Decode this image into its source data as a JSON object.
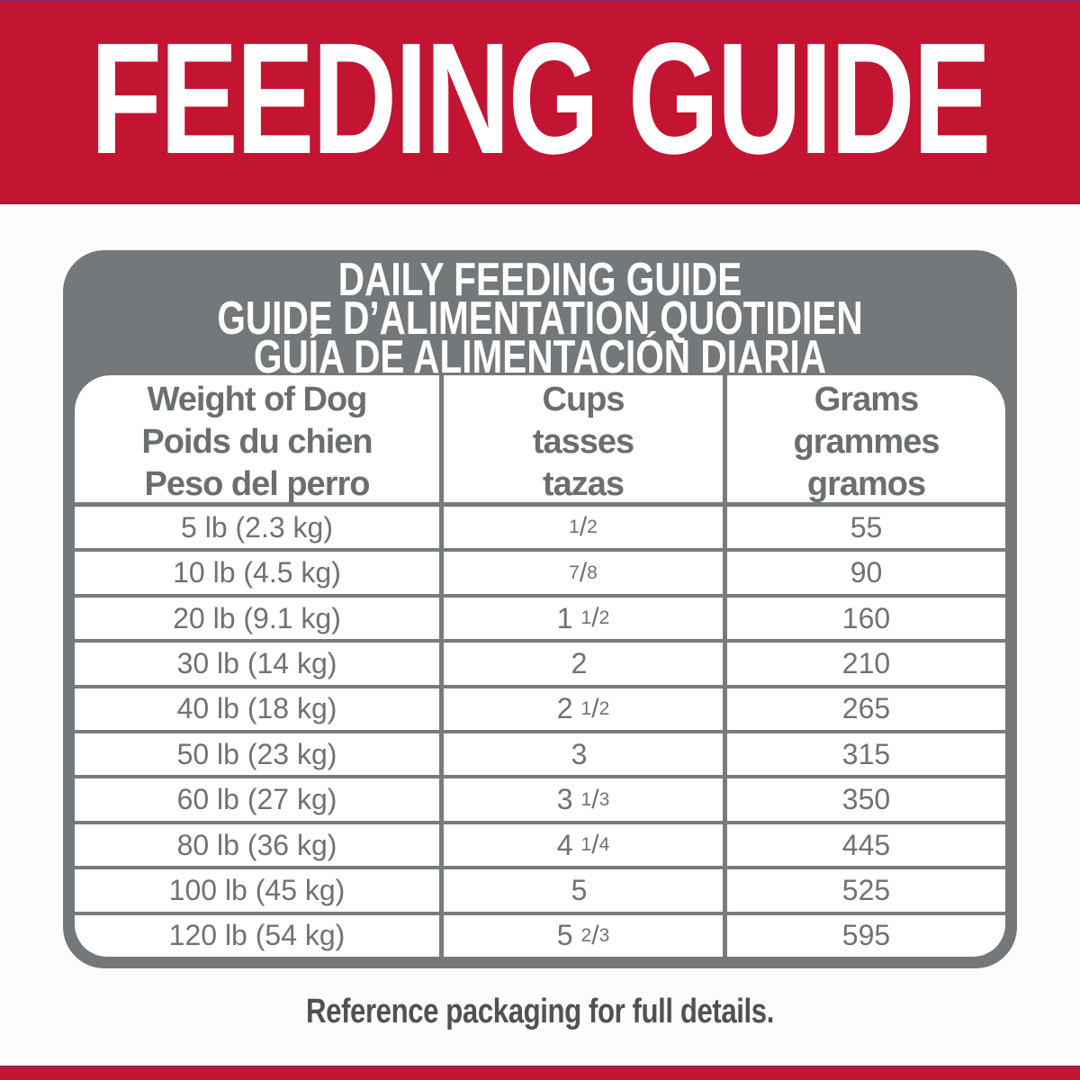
{
  "banner": {
    "title": "FEEDING GUIDE"
  },
  "card": {
    "title_lines": [
      "DAILY FEEDING GUIDE",
      "GUIDE D’ALIMENTATION QUOTIDIEN",
      "GUÍA DE ALIMENTACIÓN DIARIA"
    ],
    "columns": [
      {
        "lines": [
          "Weight of Dog",
          "Poids du chien",
          "Peso del perro"
        ]
      },
      {
        "lines": [
          "Cups",
          "tasses",
          "tazas"
        ]
      },
      {
        "lines": [
          "Grams",
          "grammes",
          "gramos"
        ]
      }
    ],
    "rows": [
      {
        "weight": "5 lb (2.3 kg)",
        "cups": {
          "whole": "",
          "num": "1",
          "slash": "/",
          "den": "2"
        },
        "grams": "55"
      },
      {
        "weight": "10 lb (4.5 kg)",
        "cups": {
          "whole": "",
          "num": "7",
          "slash": "/",
          "den": "8"
        },
        "grams": "90"
      },
      {
        "weight": "20 lb (9.1 kg)",
        "cups": {
          "whole": "1",
          "num": "1",
          "slash": "/",
          "den": "2"
        },
        "grams": "160"
      },
      {
        "weight": "30 lb (14 kg)",
        "cups": {
          "whole": "2",
          "num": "",
          "slash": "",
          "den": ""
        },
        "grams": "210"
      },
      {
        "weight": "40 lb (18 kg)",
        "cups": {
          "whole": "2",
          "num": "1",
          "slash": "/",
          "den": "2"
        },
        "grams": "265"
      },
      {
        "weight": "50 lb (23 kg)",
        "cups": {
          "whole": "3",
          "num": "",
          "slash": "",
          "den": ""
        },
        "grams": "315"
      },
      {
        "weight": "60 lb (27 kg)",
        "cups": {
          "whole": "3",
          "num": "1",
          "slash": "/",
          "den": "3"
        },
        "grams": "350"
      },
      {
        "weight": "80 lb (36 kg)",
        "cups": {
          "whole": "4",
          "num": "1",
          "slash": "/",
          "den": "4"
        },
        "grams": "445"
      },
      {
        "weight": "100 lb (45 kg)",
        "cups": {
          "whole": "5",
          "num": "",
          "slash": "",
          "den": ""
        },
        "grams": "525"
      },
      {
        "weight": "120 lb (54 kg)",
        "cups": {
          "whole": "5",
          "num": "2",
          "slash": "/",
          "den": "3"
        },
        "grams": "595"
      }
    ]
  },
  "footer": {
    "note": "Reference packaging for full details."
  },
  "colors": {
    "brand_red": "#C31432",
    "panel_gray": "#75787B",
    "grid_line_gray": "#787B7E",
    "header_text_gray": "#6A6E71",
    "cell_text_gray": "#6F7275",
    "note_text_gray": "#4F5254",
    "banner_text": "#FFFFFF"
  }
}
